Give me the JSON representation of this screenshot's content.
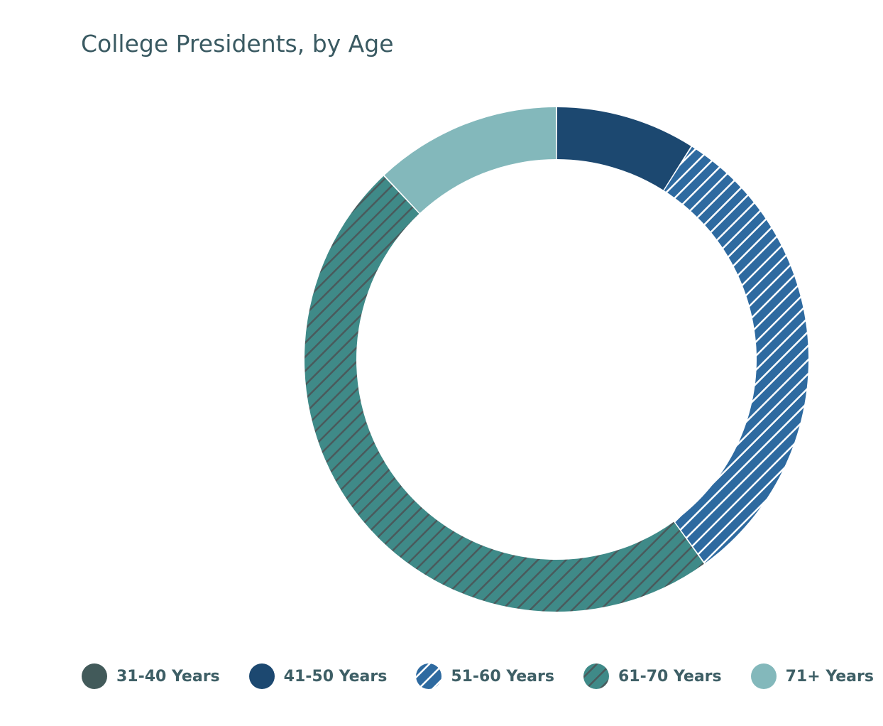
{
  "chart_data": {
    "type": "pie",
    "title": "College Presidents, by Age",
    "categories": [
      "31-40 Years",
      "41-50 Years",
      "51-60 Years",
      "61-70 Years",
      "71+ Years"
    ],
    "values": [
      0,
      9,
      31,
      48,
      12
    ],
    "series": [
      {
        "name": "31-40 Years",
        "value": 0,
        "color": "#425a5a",
        "pattern": "solid"
      },
      {
        "name": "41-50 Years",
        "value": 9,
        "color": "#1c4870",
        "pattern": "solid"
      },
      {
        "name": "51-60 Years",
        "value": 31,
        "color": "#2e6aa0",
        "pattern": "white-diagonal-stripes"
      },
      {
        "name": "61-70 Years",
        "value": 48,
        "color": "#3f8a88",
        "pattern": "dark-diagonal-stripes"
      },
      {
        "name": "71+ Years",
        "value": 12,
        "color": "#83b8bb",
        "pattern": "solid"
      }
    ],
    "hole": "large",
    "start": "top",
    "direction": "clockwise",
    "legend_position": "bottom"
  }
}
